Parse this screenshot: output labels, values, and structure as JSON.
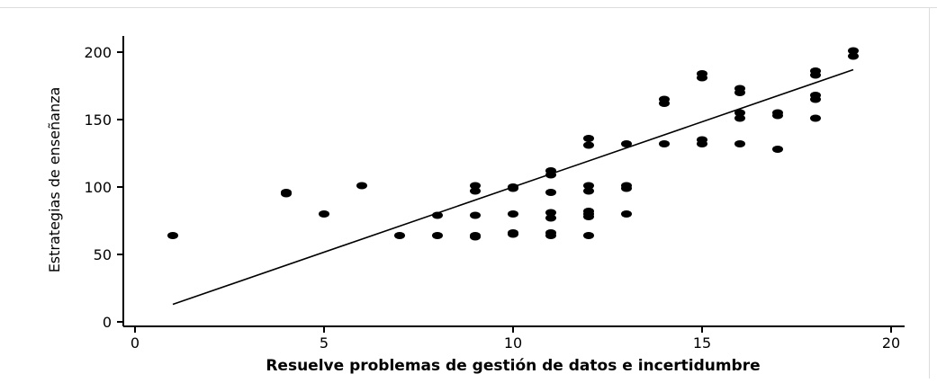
{
  "chart_data": {
    "type": "scatter",
    "title": "",
    "xlabel": "Resuelve problemas de gestión de datos e incertidumbre",
    "ylabel": "Estrategias de enseñanza",
    "xlim": [
      0,
      20
    ],
    "ylim": [
      0,
      200
    ],
    "x_ticks": [
      0,
      5,
      10,
      15,
      20
    ],
    "y_ticks": [
      0,
      50,
      100,
      150,
      200
    ],
    "x_tick_labels": [
      "0",
      "5",
      "10",
      "15",
      "20"
    ],
    "y_tick_labels": [
      "0",
      "50",
      "100",
      "150",
      "200"
    ],
    "grid": false,
    "legend": "none",
    "points": [
      [
        1,
        64
      ],
      [
        4,
        95
      ],
      [
        4,
        96
      ],
      [
        5,
        80
      ],
      [
        6,
        101
      ],
      [
        7,
        64
      ],
      [
        8,
        64
      ],
      [
        8,
        79
      ],
      [
        9,
        63
      ],
      [
        9,
        64
      ],
      [
        9,
        79
      ],
      [
        9,
        97
      ],
      [
        9,
        101
      ],
      [
        10,
        65
      ],
      [
        10,
        66
      ],
      [
        10,
        80
      ],
      [
        10,
        99
      ],
      [
        10,
        100
      ],
      [
        11,
        64
      ],
      [
        11,
        66
      ],
      [
        11,
        77
      ],
      [
        11,
        81
      ],
      [
        11,
        96
      ],
      [
        11,
        109
      ],
      [
        11,
        112
      ],
      [
        12,
        64
      ],
      [
        12,
        78
      ],
      [
        12,
        80
      ],
      [
        12,
        82
      ],
      [
        12,
        97
      ],
      [
        12,
        101
      ],
      [
        12,
        131
      ],
      [
        12,
        136
      ],
      [
        13,
        80
      ],
      [
        13,
        99
      ],
      [
        13,
        101
      ],
      [
        13,
        132
      ],
      [
        14,
        132
      ],
      [
        14,
        162
      ],
      [
        14,
        165
      ],
      [
        15,
        132
      ],
      [
        15,
        135
      ],
      [
        15,
        181
      ],
      [
        15,
        184
      ],
      [
        16,
        132
      ],
      [
        16,
        151
      ],
      [
        16,
        155
      ],
      [
        16,
        170
      ],
      [
        16,
        173
      ],
      [
        17,
        128
      ],
      [
        17,
        153
      ],
      [
        17,
        155
      ],
      [
        18,
        151
      ],
      [
        18,
        165
      ],
      [
        18,
        168
      ],
      [
        18,
        183
      ],
      [
        18,
        186
      ],
      [
        19,
        197
      ],
      [
        19,
        201
      ]
    ],
    "fit_line": {
      "x": [
        1,
        19
      ],
      "y": [
        13,
        187
      ]
    },
    "colors": {
      "marker": "#000000",
      "line": "#000000",
      "axis": "#000000"
    }
  }
}
